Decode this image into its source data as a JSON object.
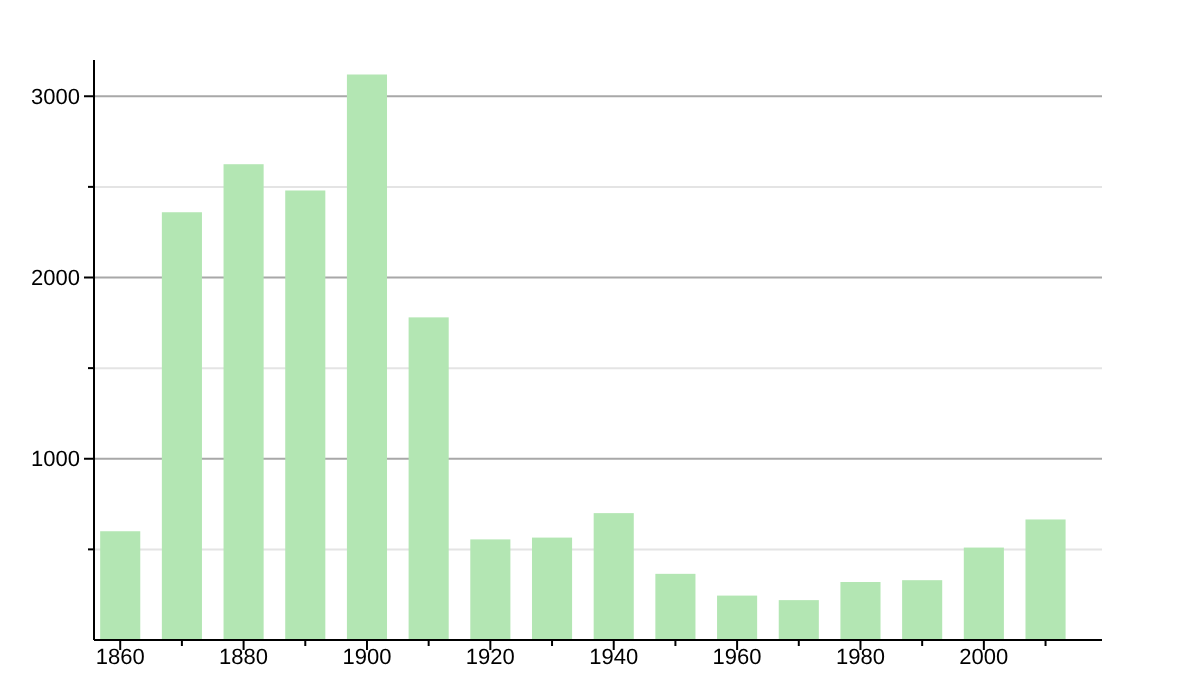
{
  "chart_data": {
    "type": "bar",
    "categories": [
      "1860",
      null,
      "1880",
      null,
      "1900",
      null,
      "1920",
      null,
      "1940",
      null,
      "1960",
      null,
      "1980",
      null,
      "2000",
      null
    ],
    "values": [
      600,
      2360,
      2625,
      2480,
      3120,
      1780,
      555,
      565,
      700,
      365,
      245,
      220,
      320,
      330,
      510,
      665
    ],
    "color": "#b3e6b3",
    "ylim": [
      0,
      3200
    ],
    "yticks": [
      {
        "value": 500,
        "label": null
      },
      1000,
      {
        "value": 1500,
        "label": null
      },
      2000,
      {
        "value": 2500,
        "label": null
      },
      3000
    ],
    "grid": "y"
  }
}
